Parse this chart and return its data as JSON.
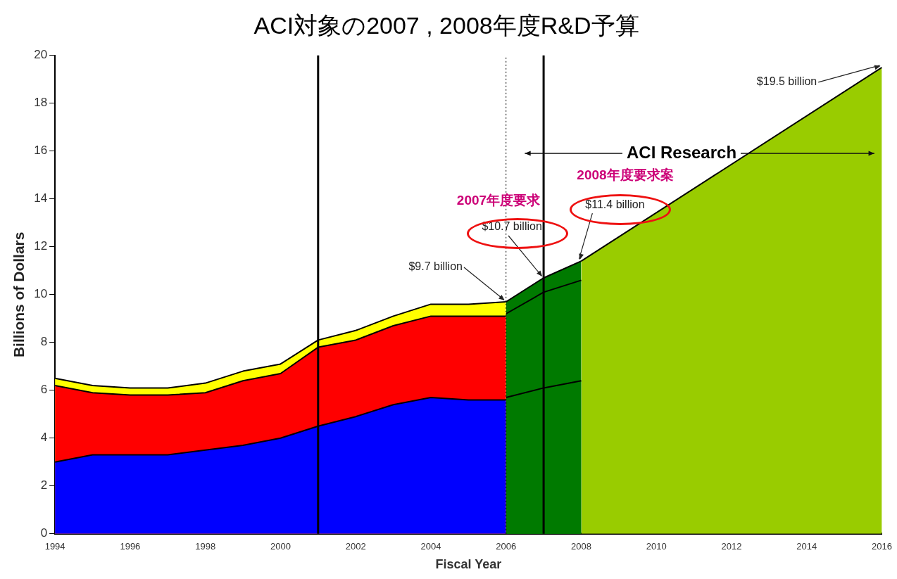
{
  "chart_data": {
    "type": "area",
    "title": "ACI対象の2007 , 2008年度R&D予算",
    "xlabel": "Fiscal Year",
    "ylabel": "Billions of Dollars",
    "xlim": [
      1994,
      2016
    ],
    "xticks": [
      1994,
      1996,
      1998,
      2000,
      2002,
      2004,
      2006,
      2008,
      2010,
      2012,
      2014,
      2016
    ],
    "ylim": [
      0,
      20
    ],
    "yticks": [
      0,
      2,
      4,
      6,
      8,
      10,
      12,
      14,
      16,
      18,
      20
    ],
    "grid": false,
    "legend": false,
    "series": [
      {
        "color": "#0000ff",
        "x": [
          1994,
          1995,
          1996,
          1997,
          1998,
          1999,
          2000,
          2001,
          2002,
          2003,
          2004,
          2005,
          2006
        ],
        "values": [
          3.0,
          3.3,
          3.3,
          3.3,
          3.5,
          3.7,
          4.0,
          4.5,
          4.9,
          5.4,
          5.7,
          5.6,
          5.6
        ]
      },
      {
        "color": "#ff0000",
        "x": [
          1994,
          1995,
          1996,
          1997,
          1998,
          1999,
          2000,
          2001,
          2002,
          2003,
          2004,
          2005,
          2006
        ],
        "values": [
          6.2,
          5.9,
          5.8,
          5.8,
          5.9,
          6.4,
          6.7,
          7.8,
          8.1,
          8.7,
          9.1,
          9.1,
          9.1
        ]
      },
      {
        "color": "#ffff00",
        "x": [
          1994,
          1995,
          1996,
          1997,
          1998,
          1999,
          2000,
          2001,
          2002,
          2003,
          2004,
          2005,
          2006
        ],
        "values": [
          6.5,
          6.2,
          6.1,
          6.1,
          6.3,
          6.8,
          7.1,
          8.1,
          8.5,
          9.1,
          9.6,
          9.6,
          9.7
        ]
      },
      {
        "color": "#007a00",
        "x": [
          2006,
          2007,
          2008
        ],
        "values": [
          5.7,
          6.1,
          6.4
        ]
      },
      {
        "color": "#007a00",
        "x": [
          2006,
          2007,
          2008
        ],
        "values": [
          9.2,
          10.1,
          10.6
        ]
      },
      {
        "color": "#007a00",
        "x": [
          2006,
          2007,
          2008
        ],
        "values": [
          9.7,
          10.7,
          11.4
        ]
      },
      {
        "color": "#99cc00",
        "x": [
          2008,
          2016
        ],
        "values": [
          11.4,
          19.5
        ]
      }
    ],
    "ref_lines": [
      {
        "axis": "x",
        "value": 2001,
        "color": "#000000",
        "line_style": "solid"
      },
      {
        "axis": "x",
        "value": 2006,
        "color": "#000000",
        "line_style": "dotted"
      },
      {
        "axis": "x",
        "value": 2007,
        "color": "#000000",
        "line_style": "solid"
      }
    ],
    "annotations": [
      {
        "text": "$9.7 billion",
        "x": 2006,
        "y": 9.7
      },
      {
        "text": "$10.7 billion",
        "x": 2007,
        "y": 10.7
      },
      {
        "text": "$11.4 billion",
        "x": 2008,
        "y": 11.4
      },
      {
        "text": "$19.5 billion",
        "x": 2016,
        "y": 19.5
      },
      "ACI Research",
      "2007年度要求",
      "2008年度要求案"
    ]
  }
}
